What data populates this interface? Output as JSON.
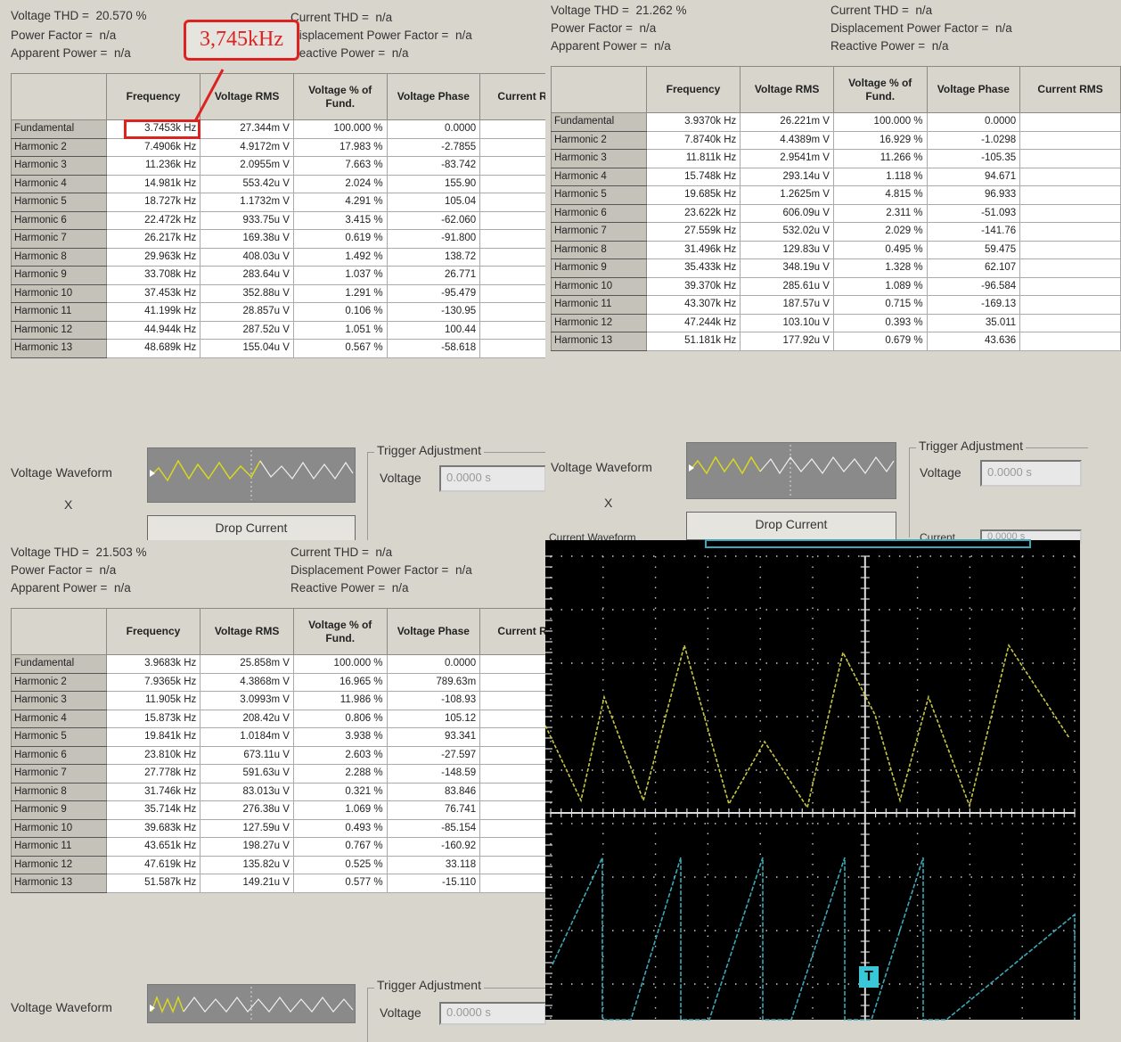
{
  "panels": [
    {
      "summary": {
        "voltage_thd_label": "Voltage THD =",
        "voltage_thd": "20.570 %",
        "power_factor_label": "Power Factor =",
        "power_factor": "n/a",
        "apparent_power_label": "Apparent Power =",
        "apparent_power": "n/a",
        "current_thd_label": "Current THD =",
        "current_thd": "n/a",
        "displacement_pf_label": "Displacement Power Factor =",
        "displacement_pf": "n/a",
        "reactive_power_label": "Reactive Power =",
        "reactive_power": "n/a"
      },
      "rows": [
        [
          "Fundamental",
          "3.7453k Hz",
          "27.344m V",
          "100.000 %",
          "0.0000"
        ],
        [
          "Harmonic 2",
          "7.4906k Hz",
          "4.9172m V",
          "17.983 %",
          "-2.7855"
        ],
        [
          "Harmonic 3",
          "11.236k Hz",
          "2.0955m V",
          "7.663 %",
          "-83.742"
        ],
        [
          "Harmonic 4",
          "14.981k Hz",
          "553.42u V",
          "2.024 %",
          "155.90"
        ],
        [
          "Harmonic 5",
          "18.727k Hz",
          "1.1732m V",
          "4.291 %",
          "105.04"
        ],
        [
          "Harmonic 6",
          "22.472k Hz",
          "933.75u V",
          "3.415 %",
          "-62.060"
        ],
        [
          "Harmonic 7",
          "26.217k Hz",
          "169.38u V",
          "0.619 %",
          "-91.800"
        ],
        [
          "Harmonic 8",
          "29.963k Hz",
          "408.03u V",
          "1.492 %",
          "138.72"
        ],
        [
          "Harmonic 9",
          "33.708k Hz",
          "283.64u V",
          "1.037 %",
          "26.771"
        ],
        [
          "Harmonic 10",
          "37.453k Hz",
          "352.88u V",
          "1.291 %",
          "-95.479"
        ],
        [
          "Harmonic 11",
          "41.199k Hz",
          "28.857u V",
          "0.106 %",
          "-130.95"
        ],
        [
          "Harmonic 12",
          "44.944k Hz",
          "287.52u V",
          "1.051 %",
          "100.44"
        ],
        [
          "Harmonic 13",
          "48.689k Hz",
          "155.04u V",
          "0.567 %",
          "-58.618"
        ]
      ],
      "annotation": "3,745kHz"
    },
    {
      "summary": {
        "voltage_thd_label": "Voltage THD =",
        "voltage_thd": "21.262 %",
        "power_factor_label": "Power Factor =",
        "power_factor": "n/a",
        "apparent_power_label": "Apparent Power =",
        "apparent_power": "n/a",
        "current_thd_label": "Current THD =",
        "current_thd": "n/a",
        "displacement_pf_label": "Displacement Power Factor =",
        "displacement_pf": "n/a",
        "reactive_power_label": "Reactive Power =",
        "reactive_power": "n/a"
      },
      "rows": [
        [
          "Fundamental",
          "3.9370k Hz",
          "26.221m V",
          "100.000 %",
          "0.0000"
        ],
        [
          "Harmonic 2",
          "7.8740k Hz",
          "4.4389m V",
          "16.929 %",
          "-1.0298"
        ],
        [
          "Harmonic 3",
          "11.811k Hz",
          "2.9541m V",
          "11.266 %",
          "-105.35"
        ],
        [
          "Harmonic 4",
          "15.748k Hz",
          "293.14u V",
          "1.118 %",
          "94.671"
        ],
        [
          "Harmonic 5",
          "19.685k Hz",
          "1.2625m V",
          "4.815 %",
          "96.933"
        ],
        [
          "Harmonic 6",
          "23.622k Hz",
          "606.09u V",
          "2.311 %",
          "-51.093"
        ],
        [
          "Harmonic 7",
          "27.559k Hz",
          "532.02u V",
          "2.029 %",
          "-141.76"
        ],
        [
          "Harmonic 8",
          "31.496k Hz",
          "129.83u V",
          "0.495 %",
          "59.475"
        ],
        [
          "Harmonic 9",
          "35.433k Hz",
          "348.19u V",
          "1.328 %",
          "62.107"
        ],
        [
          "Harmonic 10",
          "39.370k Hz",
          "285.61u V",
          "1.089 %",
          "-96.584"
        ],
        [
          "Harmonic 11",
          "43.307k Hz",
          "187.57u V",
          "0.715 %",
          "-169.13"
        ],
        [
          "Harmonic 12",
          "47.244k Hz",
          "103.10u V",
          "0.393 %",
          "35.011"
        ],
        [
          "Harmonic 13",
          "51.181k Hz",
          "177.92u V",
          "0.679 %",
          "43.636"
        ]
      ]
    },
    {
      "summary": {
        "voltage_thd_label": "Voltage THD =",
        "voltage_thd": "21.503 %",
        "power_factor_label": "Power Factor =",
        "power_factor": "n/a",
        "apparent_power_label": "Apparent Power =",
        "apparent_power": "n/a",
        "current_thd_label": "Current THD =",
        "current_thd": "n/a",
        "displacement_pf_label": "Displacement Power Factor =",
        "displacement_pf": "n/a",
        "reactive_power_label": "Reactive Power =",
        "reactive_power": "n/a"
      },
      "rows": [
        [
          "Fundamental",
          "3.9683k Hz",
          "25.858m V",
          "100.000 %",
          "0.0000"
        ],
        [
          "Harmonic 2",
          "7.9365k Hz",
          "4.3868m V",
          "16.965 %",
          "789.63m"
        ],
        [
          "Harmonic 3",
          "11.905k Hz",
          "3.0993m V",
          "11.986 %",
          "-108.93"
        ],
        [
          "Harmonic 4",
          "15.873k Hz",
          "208.42u V",
          "0.806 %",
          "105.12"
        ],
        [
          "Harmonic 5",
          "19.841k Hz",
          "1.0184m V",
          "3.938 %",
          "93.341"
        ],
        [
          "Harmonic 6",
          "23.810k Hz",
          "673.11u V",
          "2.603 %",
          "-27.597"
        ],
        [
          "Harmonic 7",
          "27.778k Hz",
          "591.63u V",
          "2.288 %",
          "-148.59"
        ],
        [
          "Harmonic 8",
          "31.746k Hz",
          "83.013u V",
          "0.321 %",
          "83.846"
        ],
        [
          "Harmonic 9",
          "35.714k Hz",
          "276.38u V",
          "1.069 %",
          "76.741"
        ],
        [
          "Harmonic 10",
          "39.683k Hz",
          "127.59u V",
          "0.493 %",
          "-85.154"
        ],
        [
          "Harmonic 11",
          "43.651k Hz",
          "198.27u V",
          "0.767 %",
          "-160.92"
        ],
        [
          "Harmonic 12",
          "47.619k Hz",
          "135.82u V",
          "0.525 %",
          "33.118"
        ],
        [
          "Harmonic 13",
          "51.587k Hz",
          "149.21u V",
          "0.577 %",
          "-15.110"
        ]
      ]
    }
  ],
  "table_headers": {
    "frequency": "Frequency",
    "voltage_rms": "Voltage RMS",
    "voltage_pct": "Voltage % of Fund.",
    "voltage_phase": "Voltage Phase",
    "current_rms": "Current RMS"
  },
  "controls": {
    "voltage_waveform_label": "Voltage Waveform",
    "x_mark": "X",
    "drop_current_label": "Drop Current",
    "trigger_adjustment_title": "Trigger Adjustment",
    "trigger_voltage_label": "Voltage",
    "trigger_voltage_value": "0.0000 s",
    "current_waveform_label": "Current Waveform",
    "current_trigger_label": "Current",
    "current_trigger_value": "0.0000 s"
  },
  "scope": {
    "trigger_marker": "T",
    "colors": {
      "ch1": "#c8c840",
      "ch2": "#3aa8b8",
      "grid": "#c8c8c8"
    }
  }
}
